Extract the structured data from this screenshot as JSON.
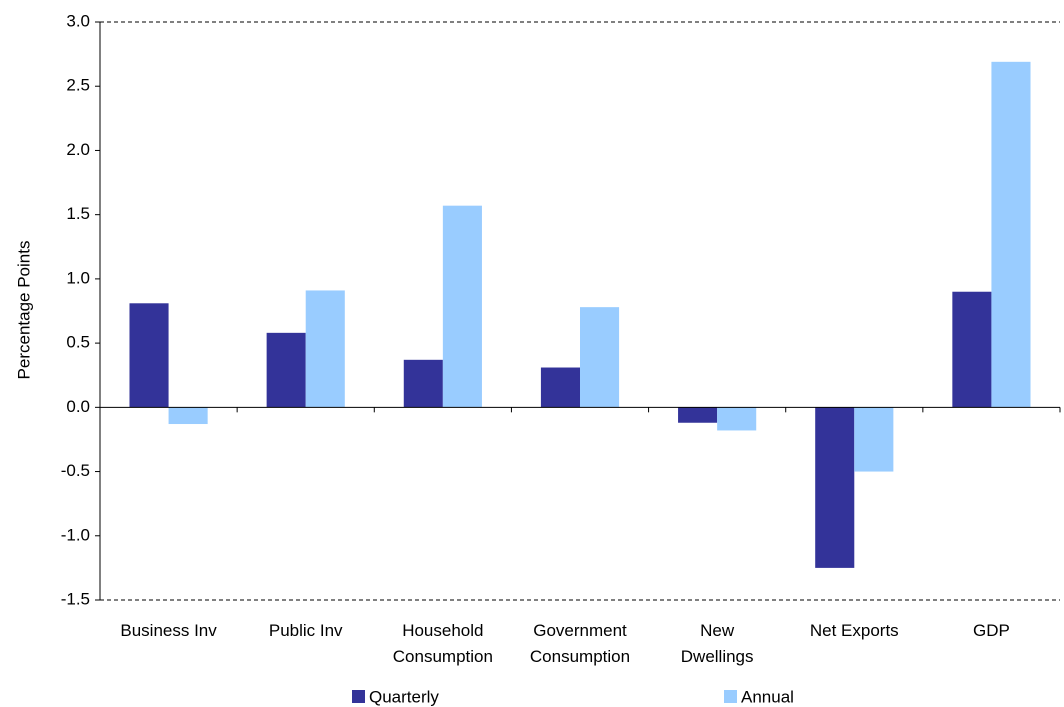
{
  "chart_data": {
    "type": "bar",
    "y_label": "Percentage Points",
    "categories": [
      "Business Inv",
      "Public Inv",
      "Household\nConsumption",
      "Government\nConsumption",
      "New\nDwellings",
      "Net Exports",
      "GDP"
    ],
    "series": [
      {
        "name": "Quarterly",
        "color": "#333399",
        "values": [
          0.81,
          0.58,
          0.37,
          0.31,
          -0.12,
          -1.25,
          0.9
        ]
      },
      {
        "name": "Annual",
        "color": "#99ccff",
        "values": [
          -0.13,
          0.91,
          1.57,
          0.78,
          -0.18,
          -0.5,
          2.69
        ]
      }
    ],
    "ylim": [
      -1.5,
      3.0
    ],
    "yticks": [
      {
        "value": -1.5,
        "label": "-1.5"
      },
      {
        "value": -1,
        "label": "-1.0"
      },
      {
        "value": -0.5,
        "label": "-0.5"
      },
      {
        "value": 0,
        "label": "0.0"
      },
      {
        "value": 0.5,
        "label": "0.5"
      },
      {
        "value": 1,
        "label": "1.0"
      },
      {
        "value": 1.5,
        "label": "1.5"
      },
      {
        "value": 2,
        "label": "2.0"
      },
      {
        "value": 2.5,
        "label": "2.5"
      },
      {
        "value": 3,
        "label": "3.0"
      }
    ],
    "legend": "bottom"
  }
}
